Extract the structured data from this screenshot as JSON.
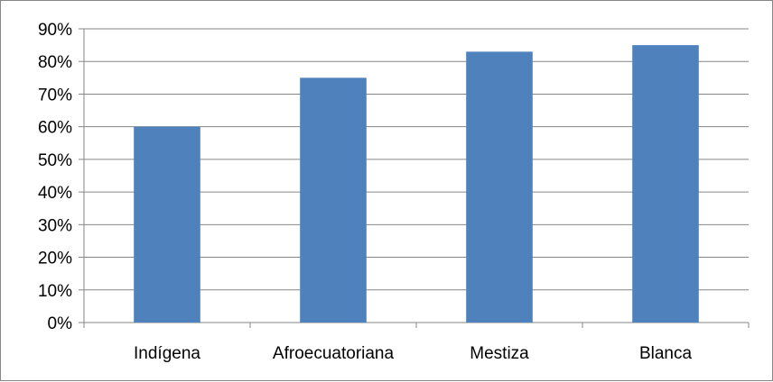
{
  "chart_data": {
    "type": "bar",
    "categories": [
      "Indígena",
      "Afroecuatoriana",
      "Mestiza",
      "Blanca"
    ],
    "values": [
      60,
      75,
      83,
      85
    ],
    "value_format": "percent",
    "title": "",
    "xlabel": "",
    "ylabel": "",
    "ylim": [
      0,
      90
    ],
    "y_ticks": [
      "0%",
      "10%",
      "20%",
      "30%",
      "40%",
      "50%",
      "60%",
      "70%",
      "80%",
      "90%"
    ],
    "grid": true,
    "legend": "none",
    "colors": {
      "bar": "#4F81BD",
      "grid": "#868686",
      "frame": "#868686"
    }
  }
}
